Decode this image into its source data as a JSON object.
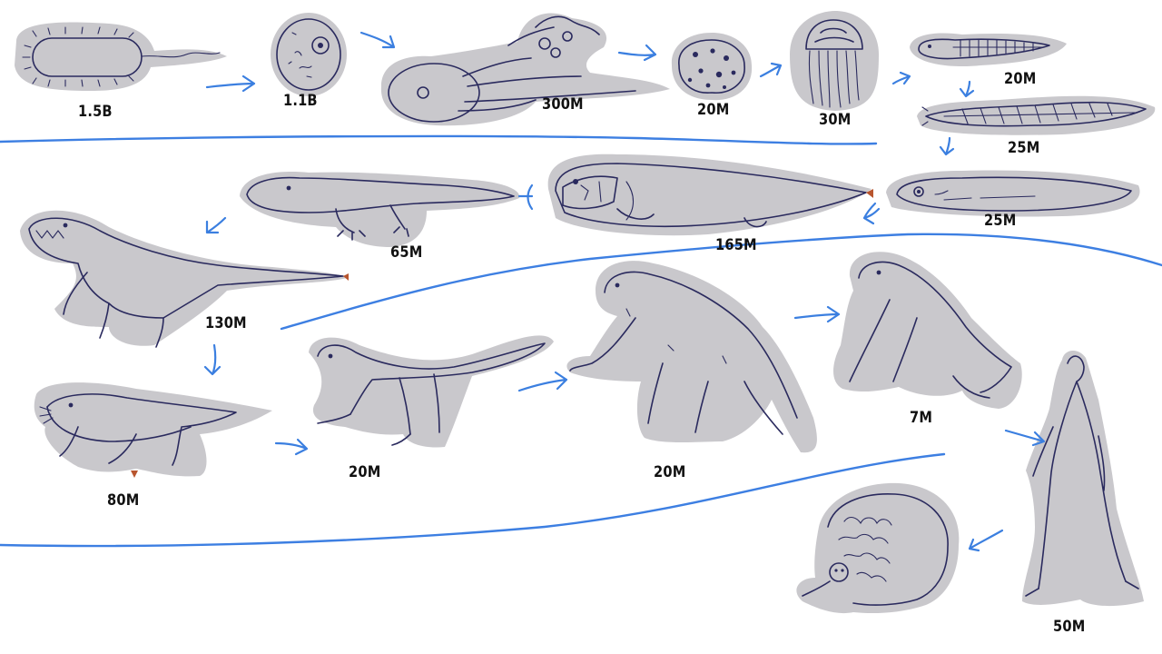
{
  "stages": [
    {
      "id": "bacterium",
      "icon": "bacterium-icon",
      "label": "1.5B"
    },
    {
      "id": "eukaryote-cell",
      "icon": "eukaryotic-cell-icon",
      "label": "1.1B"
    },
    {
      "id": "colonial-organism",
      "icon": "colonial-organism-icon",
      "label": "300M"
    },
    {
      "id": "sponge",
      "icon": "sponge-icon",
      "label": "20M"
    },
    {
      "id": "jellyfish",
      "icon": "jellyfish-icon",
      "label": "30M"
    },
    {
      "id": "flatworm",
      "icon": "flatworm-icon",
      "label": "20M"
    },
    {
      "id": "lancelet",
      "icon": "lancelet-icon",
      "label": "25M"
    },
    {
      "id": "jawless-fish",
      "icon": "jawless-fish-icon",
      "label": "25M"
    },
    {
      "id": "armored-fish",
      "icon": "armored-fish-icon",
      "label": "165M"
    },
    {
      "id": "amphibian",
      "icon": "amphibian-icon",
      "label": "65M"
    },
    {
      "id": "reptile",
      "icon": "reptile-icon",
      "label": "130M"
    },
    {
      "id": "early-mammal",
      "icon": "early-mammal-icon",
      "label": "80M"
    },
    {
      "id": "early-primate",
      "icon": "early-primate-icon",
      "label": "20M"
    },
    {
      "id": "monkey",
      "icon": "monkey-icon",
      "label": "20M"
    },
    {
      "id": "ape",
      "icon": "ape-icon",
      "label": "7M"
    },
    {
      "id": "human",
      "icon": "human-icon",
      "label": "50M"
    },
    {
      "id": "brain-creature",
      "icon": "brain-creature-icon",
      "label": ""
    }
  ],
  "colors": {
    "arrow": "#3b7fe0",
    "ink": "#2a2a5e",
    "cutout": "#c9c8cc",
    "background": "#ffffff"
  }
}
